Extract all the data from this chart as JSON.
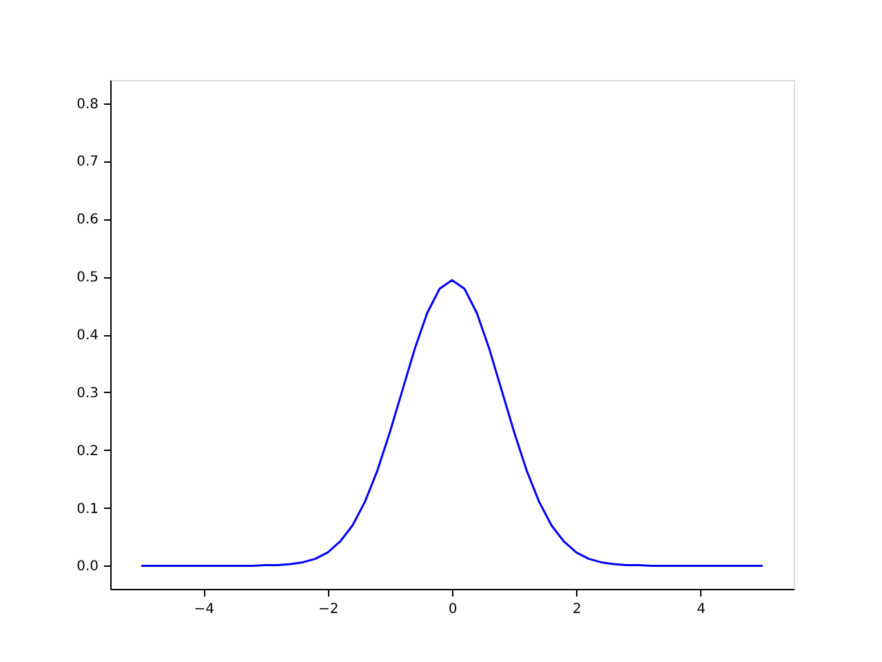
{
  "chart_data": {
    "type": "line",
    "x": [
      -5,
      -4.8,
      -4.6,
      -4.4,
      -4.2,
      -4,
      -3.8,
      -3.6,
      -3.4,
      -3.2,
      -3,
      -2.8,
      -2.6,
      -2.4,
      -2.2,
      -2,
      -1.8,
      -1.6,
      -1.4,
      -1.2,
      -1,
      -0.8,
      -0.6,
      -0.4,
      -0.2,
      0,
      0.2,
      0.4,
      0.6,
      0.8,
      1,
      1.2,
      1.4,
      1.6,
      1.8,
      2,
      2.2,
      2.4,
      2.6,
      2.8,
      3,
      3.2,
      3.4,
      3.6,
      3.8,
      4,
      4.2,
      4.4,
      4.6,
      4.8,
      5
    ],
    "series": [
      {
        "color": "#0000ff",
        "values": [
          0,
          0,
          0,
          0,
          0,
          0,
          0,
          0,
          0,
          0,
          0.001,
          0.001,
          0.003,
          0.006,
          0.012,
          0.023,
          0.042,
          0.07,
          0.111,
          0.165,
          0.231,
          0.303,
          0.375,
          0.437,
          0.479,
          0.494,
          0.479,
          0.437,
          0.375,
          0.303,
          0.231,
          0.165,
          0.111,
          0.07,
          0.042,
          0.023,
          0.012,
          0.006,
          0.003,
          0.001,
          0.001,
          0,
          0,
          0,
          0,
          0,
          0,
          0,
          0,
          0,
          0
        ]
      }
    ],
    "xlim": [
      -5.5,
      5.5
    ],
    "xticks": [
      -4,
      -2,
      0,
      2,
      4
    ],
    "ylim": [
      -0.04,
      0.84
    ],
    "yticks": [
      {
        "value": 0,
        "label": "0.0"
      },
      0.1,
      0.2,
      0.3,
      0.4,
      0.5,
      0.6,
      0.7,
      0.8
    ],
    "grid": false,
    "marker": "none",
    "line_style": "solid"
  }
}
